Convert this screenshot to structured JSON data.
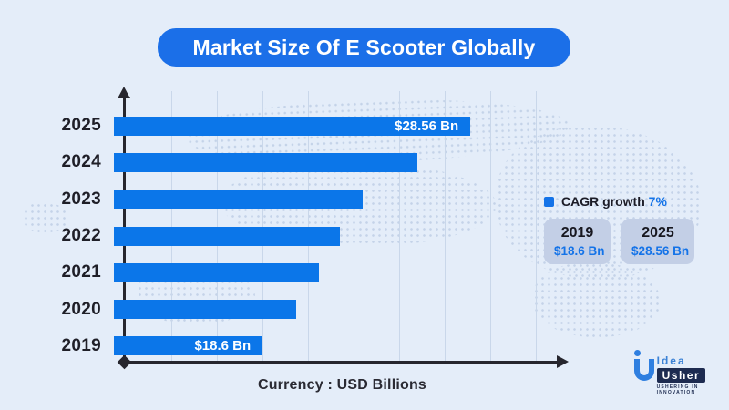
{
  "page": {
    "background": "#e4edf9",
    "accent_blue": "#0b76e9",
    "dark": "#26262e"
  },
  "title": {
    "text": "Market Size Of E Scooter Globally",
    "bg": "#1b6fe8",
    "color": "#ffffff"
  },
  "chart_data": {
    "type": "bar",
    "orientation": "horizontal",
    "title": "Market Size Of E Scooter Globally",
    "categories": [
      "2025",
      "2024",
      "2023",
      "2022",
      "2021",
      "2020",
      "2019"
    ],
    "values": [
      28.56,
      26.1,
      24.4,
      22.8,
      21.3,
      19.9,
      18.6
    ],
    "unlabeled_values_estimated": true,
    "value_unit": "USD Billions",
    "bar_labels": [
      "$28.56 Bn",
      "",
      "",
      "",
      "",
      "",
      "$18.6 Bn"
    ],
    "bar_len_pct": [
      82.7,
      70.4,
      57.7,
      52.4,
      47.6,
      42.3,
      34.5
    ],
    "xlabel": "Currency : USD Billions",
    "bar_color": "#0b76e9",
    "grid": true,
    "gridline_color": "#c9d7ea",
    "x_tick_labels_shown": false,
    "legend_position": "right"
  },
  "legend": {
    "swatch_color": "#1473e8",
    "label": "CAGR growth",
    "highlight": "7%",
    "box_bg": "#c3cfe6",
    "boxes": [
      {
        "year": "2019",
        "value": "$18.6 Bn"
      },
      {
        "year": "2025",
        "value": "$28.56 Bn"
      }
    ]
  },
  "caption": {
    "text": "Currency : USD Billions"
  },
  "logo": {
    "idea": "Idea",
    "usher": "Usher",
    "tagline": "USHERING IN INNOVATION"
  }
}
